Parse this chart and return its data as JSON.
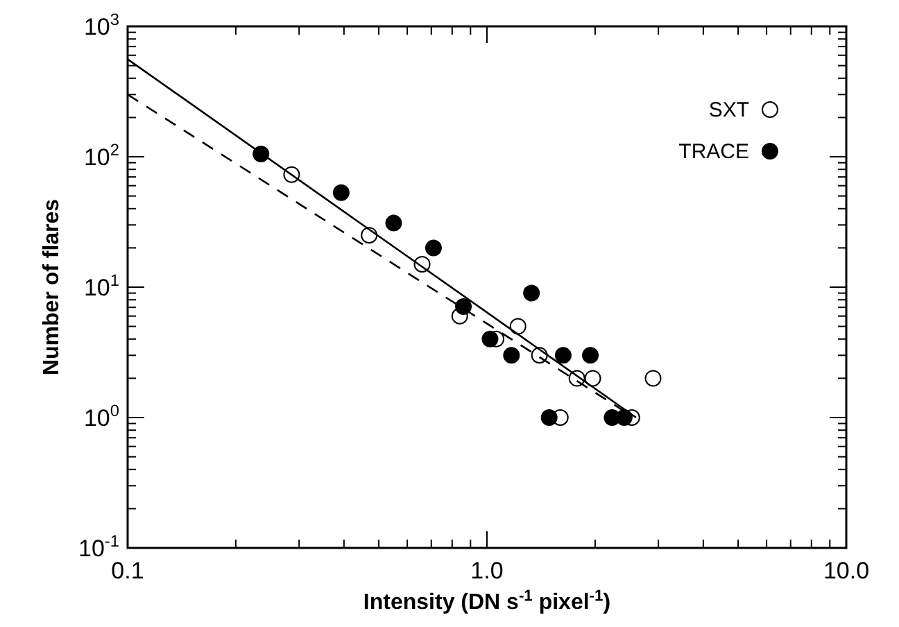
{
  "chart_data": {
    "type": "scatter",
    "xlabel": "Intensity (DN s$^{-1}$ pixel$^{-1}$)",
    "ylabel": "Number of flares",
    "log": "xy",
    "grid": false,
    "legend": "top right",
    "marker": "circle",
    "xlim": [
      0.1,
      10
    ],
    "ylim": [
      0.1,
      1000
    ],
    "xticks": [
      {
        "value": 0.1,
        "label": "0.1"
      },
      {
        "value": 0.2,
        "label": null
      },
      {
        "value": 0.3,
        "label": null
      },
      {
        "value": 0.4,
        "label": null
      },
      {
        "value": 0.5,
        "label": null
      },
      {
        "value": 0.6,
        "label": null
      },
      {
        "value": 0.7,
        "label": null
      },
      {
        "value": 0.8,
        "label": null
      },
      {
        "value": 0.9,
        "label": null
      },
      {
        "value": 1,
        "label": "1.0"
      },
      {
        "value": 2,
        "label": null
      },
      {
        "value": 3,
        "label": null
      },
      {
        "value": 4,
        "label": null
      },
      {
        "value": 5,
        "label": null
      },
      {
        "value": 6,
        "label": null
      },
      {
        "value": 7,
        "label": null
      },
      {
        "value": 8,
        "label": null
      },
      {
        "value": 9,
        "label": null
      },
      {
        "value": 10,
        "label": "10.0"
      }
    ],
    "yticks": [
      {
        "value": 0.1,
        "label": "10$^{-1}$"
      },
      {
        "value": 0.2,
        "label": null
      },
      {
        "value": 0.3,
        "label": null
      },
      {
        "value": 0.4,
        "label": null
      },
      {
        "value": 0.5,
        "label": null
      },
      {
        "value": 0.6,
        "label": null
      },
      {
        "value": 0.7,
        "label": null
      },
      {
        "value": 0.8,
        "label": null
      },
      {
        "value": 0.9,
        "label": null
      },
      {
        "value": 1,
        "label": "10$^{0}$"
      },
      {
        "value": 2,
        "label": null
      },
      {
        "value": 3,
        "label": null
      },
      {
        "value": 4,
        "label": null
      },
      {
        "value": 5,
        "label": null
      },
      {
        "value": 6,
        "label": null
      },
      {
        "value": 7,
        "label": null
      },
      {
        "value": 8,
        "label": null
      },
      {
        "value": 9,
        "label": null
      },
      {
        "value": 10,
        "label": "10$^{1}$"
      },
      {
        "value": 20,
        "label": null
      },
      {
        "value": 30,
        "label": null
      },
      {
        "value": 40,
        "label": null
      },
      {
        "value": 50,
        "label": null
      },
      {
        "value": 60,
        "label": null
      },
      {
        "value": 70,
        "label": null
      },
      {
        "value": 80,
        "label": null
      },
      {
        "value": 90,
        "label": null
      },
      {
        "value": 100,
        "label": "10$^{2}$"
      },
      {
        "value": 200,
        "label": null
      },
      {
        "value": 300,
        "label": null
      },
      {
        "value": 400,
        "label": null
      },
      {
        "value": 500,
        "label": null
      },
      {
        "value": 600,
        "label": null
      },
      {
        "value": 700,
        "label": null
      },
      {
        "value": 800,
        "label": null
      },
      {
        "value": 900,
        "label": null
      },
      {
        "value": 1000,
        "label": "10$^{3}$"
      }
    ],
    "series": [
      {
        "name": "SXT",
        "color": "#ffffff",
        "x": [
          0.286,
          0.47,
          0.66,
          0.84,
          1.06,
          1.22,
          1.4,
          1.6,
          1.78,
          1.97,
          2.53,
          2.9
        ],
        "values": [
          73,
          25,
          15,
          6,
          4,
          5,
          3,
          1,
          2,
          2,
          1,
          2
        ]
      },
      {
        "name": "TRACE",
        "color": "#000000",
        "x": [
          0.235,
          0.393,
          0.55,
          0.71,
          0.86,
          1.02,
          1.17,
          1.33,
          1.49,
          1.63,
          1.94,
          2.23,
          2.41
        ],
        "values": [
          105,
          53,
          31,
          20,
          7.1,
          4,
          3,
          9,
          1,
          3,
          3,
          1,
          1
        ]
      },
      {
        "type": "line",
        "marker": "none",
        "color": "#000000",
        "line_style": "solid",
        "x": [
          0.1,
          2.6
        ],
        "values": [
          560,
          1
        ]
      },
      {
        "type": "line",
        "marker": "none",
        "color": "#000000",
        "line_style": "dashed",
        "x": [
          0.1,
          2.5
        ],
        "values": [
          300,
          1.05
        ]
      }
    ]
  }
}
